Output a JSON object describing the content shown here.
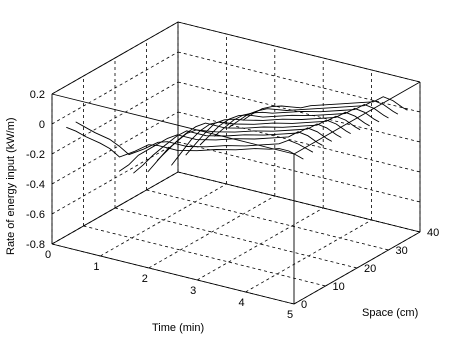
{
  "chart_data": {
    "type": "line",
    "projection": "3d",
    "title": "",
    "xlabel": "Time (min)",
    "ylabel": "Space (cm)",
    "zlabel": "Rate of energy input (kW/m)",
    "xlim": [
      0,
      5
    ],
    "ylim": [
      0,
      40
    ],
    "zlim": [
      -0.8,
      0.2
    ],
    "x_ticks": [
      "0",
      "1",
      "2",
      "3",
      "4",
      "5"
    ],
    "y_ticks": [
      "0",
      "10",
      "20",
      "30",
      "40"
    ],
    "z_ticks": [
      "-0.8",
      "-0.6",
      "-0.4",
      "-0.2",
      "0",
      "0.2"
    ],
    "grid": true,
    "box": true,
    "line_color": "#000000",
    "series": [
      {
        "y": 3,
        "points": [
          [
            0.1,
            -0.05
          ],
          [
            0.3,
            -0.06
          ],
          [
            0.5,
            -0.08
          ],
          [
            0.8,
            -0.1
          ],
          [
            1.0,
            -0.12
          ],
          [
            1.2,
            -0.16
          ],
          [
            1.5,
            -0.1
          ],
          [
            1.8,
            -0.03
          ],
          [
            2.0,
            -0.02
          ],
          [
            2.4,
            -0.02
          ],
          [
            2.8,
            0.01
          ],
          [
            3.2,
            0.05
          ],
          [
            3.6,
            0.08
          ],
          [
            4.0,
            0.12
          ],
          [
            4.3,
            0.14
          ],
          [
            4.5,
            0.16
          ],
          [
            4.7,
            0.16
          ],
          [
            4.9,
            0.14
          ],
          [
            5.0,
            0.13
          ]
        ]
      },
      {
        "y": 6,
        "points": [
          [
            0.1,
            -0.05
          ],
          [
            0.3,
            -0.07
          ],
          [
            0.5,
            -0.09
          ],
          [
            0.8,
            -0.11
          ],
          [
            1.0,
            -0.14
          ],
          [
            1.2,
            -0.18
          ],
          [
            1.5,
            -0.12
          ],
          [
            1.8,
            -0.05
          ],
          [
            2.0,
            -0.03
          ],
          [
            2.4,
            -0.03
          ],
          [
            2.8,
            0.0
          ],
          [
            3.2,
            0.04
          ],
          [
            3.6,
            0.07
          ],
          [
            4.0,
            0.11
          ],
          [
            4.3,
            0.14
          ],
          [
            4.5,
            0.18
          ],
          [
            4.7,
            0.17
          ],
          [
            4.9,
            0.15
          ],
          [
            5.0,
            0.14
          ]
        ]
      },
      {
        "y": 9,
        "points": [
          [
            0.8,
            -0.36
          ],
          [
            1.0,
            -0.3
          ],
          [
            1.2,
            -0.22
          ],
          [
            1.5,
            -0.14
          ],
          [
            1.8,
            -0.06
          ],
          [
            2.0,
            -0.02
          ],
          [
            2.4,
            -0.02
          ],
          [
            2.8,
            0.01
          ],
          [
            3.2,
            0.05
          ],
          [
            3.6,
            0.08
          ],
          [
            4.0,
            0.12
          ],
          [
            4.3,
            0.15
          ],
          [
            4.5,
            0.2
          ],
          [
            4.7,
            0.19
          ],
          [
            4.9,
            0.16
          ],
          [
            5.0,
            0.15
          ]
        ]
      },
      {
        "y": 12,
        "points": [
          [
            0.9,
            -0.4
          ],
          [
            1.1,
            -0.33
          ],
          [
            1.3,
            -0.25
          ],
          [
            1.5,
            -0.18
          ],
          [
            1.8,
            -0.08
          ],
          [
            2.0,
            -0.03
          ],
          [
            2.4,
            -0.03
          ],
          [
            2.8,
            0.0
          ],
          [
            3.2,
            0.04
          ],
          [
            3.6,
            0.07
          ],
          [
            4.0,
            0.11
          ],
          [
            4.3,
            0.14
          ],
          [
            4.5,
            0.19
          ],
          [
            4.7,
            0.18
          ],
          [
            4.9,
            0.15
          ],
          [
            5.0,
            0.14
          ]
        ]
      },
      {
        "y": 15,
        "points": [
          [
            1.0,
            -0.42
          ],
          [
            1.2,
            -0.33
          ],
          [
            1.4,
            -0.24
          ],
          [
            1.6,
            -0.17
          ],
          [
            1.8,
            -0.1
          ],
          [
            2.0,
            -0.06
          ],
          [
            2.4,
            -0.04
          ],
          [
            2.8,
            -0.01
          ],
          [
            3.2,
            0.03
          ],
          [
            3.6,
            0.06
          ],
          [
            4.0,
            0.1
          ],
          [
            4.3,
            0.13
          ],
          [
            4.5,
            0.18
          ],
          [
            4.7,
            0.17
          ],
          [
            4.9,
            0.14
          ],
          [
            5.0,
            0.13
          ]
        ]
      },
      {
        "y": 18,
        "points": [
          [
            1.0,
            -0.38
          ],
          [
            1.2,
            -0.3
          ],
          [
            1.4,
            -0.22
          ],
          [
            1.6,
            -0.15
          ],
          [
            1.8,
            -0.09
          ],
          [
            2.0,
            -0.05
          ],
          [
            2.4,
            -0.05
          ],
          [
            2.8,
            -0.02
          ],
          [
            3.2,
            0.02
          ],
          [
            3.6,
            0.05
          ],
          [
            4.0,
            0.09
          ],
          [
            4.3,
            0.12
          ],
          [
            4.5,
            0.17
          ],
          [
            4.7,
            0.16
          ],
          [
            4.9,
            0.13
          ],
          [
            5.0,
            0.12
          ]
        ]
      },
      {
        "y": 21,
        "points": [
          [
            1.1,
            -0.44
          ],
          [
            1.3,
            -0.34
          ],
          [
            1.5,
            -0.24
          ],
          [
            1.7,
            -0.16
          ],
          [
            1.9,
            -0.1
          ],
          [
            2.1,
            -0.07
          ],
          [
            2.4,
            -0.06
          ],
          [
            2.8,
            -0.03
          ],
          [
            3.2,
            0.01
          ],
          [
            3.6,
            0.04
          ],
          [
            4.0,
            0.08
          ],
          [
            4.3,
            0.11
          ],
          [
            4.5,
            0.16
          ],
          [
            4.7,
            0.15
          ],
          [
            4.9,
            0.12
          ],
          [
            5.0,
            0.11
          ]
        ]
      },
      {
        "y": 24,
        "points": [
          [
            1.2,
            -0.4
          ],
          [
            1.4,
            -0.31
          ],
          [
            1.6,
            -0.22
          ],
          [
            1.8,
            -0.14
          ],
          [
            2.0,
            -0.1
          ],
          [
            2.2,
            -0.08
          ],
          [
            2.4,
            -0.07
          ],
          [
            2.8,
            -0.04
          ],
          [
            3.2,
            0.0
          ],
          [
            3.6,
            0.03
          ],
          [
            4.0,
            0.07
          ],
          [
            4.3,
            0.1
          ],
          [
            4.5,
            0.15
          ],
          [
            4.7,
            0.14
          ],
          [
            4.9,
            0.11
          ],
          [
            5.0,
            0.1
          ]
        ]
      },
      {
        "y": 27,
        "points": [
          [
            1.3,
            -0.36
          ],
          [
            1.5,
            -0.28
          ],
          [
            1.7,
            -0.2
          ],
          [
            1.9,
            -0.14
          ],
          [
            2.1,
            -0.1
          ],
          [
            2.3,
            -0.08
          ],
          [
            2.6,
            -0.07
          ],
          [
            2.9,
            -0.04
          ],
          [
            3.2,
            -0.01
          ],
          [
            3.6,
            0.02
          ],
          [
            4.0,
            0.06
          ],
          [
            4.3,
            0.09
          ],
          [
            4.5,
            0.14
          ],
          [
            4.7,
            0.13
          ],
          [
            4.9,
            0.1
          ],
          [
            5.0,
            0.09
          ]
        ]
      },
      {
        "y": 30,
        "points": [
          [
            1.4,
            -0.33
          ],
          [
            1.6,
            -0.26
          ],
          [
            1.8,
            -0.19
          ],
          [
            2.0,
            -0.14
          ],
          [
            2.2,
            -0.11
          ],
          [
            2.4,
            -0.09
          ],
          [
            2.6,
            -0.08
          ],
          [
            2.9,
            -0.05
          ],
          [
            3.2,
            -0.02
          ],
          [
            3.6,
            0.01
          ],
          [
            4.0,
            0.05
          ],
          [
            4.3,
            0.08
          ],
          [
            4.5,
            0.13
          ],
          [
            4.7,
            0.12
          ],
          [
            4.9,
            0.09
          ],
          [
            5.0,
            0.08
          ]
        ]
      },
      {
        "y": 33,
        "points": [
          [
            1.5,
            -0.3
          ],
          [
            1.7,
            -0.24
          ],
          [
            1.9,
            -0.18
          ],
          [
            2.1,
            -0.14
          ],
          [
            2.3,
            -0.11
          ],
          [
            2.5,
            -0.1
          ],
          [
            2.7,
            -0.09
          ],
          [
            3.0,
            -0.06
          ],
          [
            3.3,
            -0.03
          ],
          [
            3.6,
            0.0
          ],
          [
            4.0,
            0.04
          ],
          [
            4.3,
            0.07
          ],
          [
            4.5,
            0.12
          ],
          [
            4.7,
            0.11
          ],
          [
            4.9,
            0.08
          ],
          [
            5.0,
            0.07
          ]
        ]
      },
      {
        "y": 36,
        "points": [
          [
            1.6,
            -0.28
          ],
          [
            1.8,
            -0.22
          ],
          [
            2.0,
            -0.17
          ],
          [
            2.2,
            -0.14
          ],
          [
            2.4,
            -0.12
          ],
          [
            2.6,
            -0.11
          ],
          [
            2.8,
            -0.1
          ],
          [
            3.0,
            -0.07
          ],
          [
            3.3,
            -0.04
          ],
          [
            3.6,
            -0.01
          ],
          [
            4.0,
            0.03
          ],
          [
            4.3,
            0.06
          ],
          [
            4.5,
            0.11
          ],
          [
            4.7,
            0.1
          ],
          [
            4.9,
            0.07
          ],
          [
            5.0,
            0.06
          ]
        ]
      }
    ]
  }
}
